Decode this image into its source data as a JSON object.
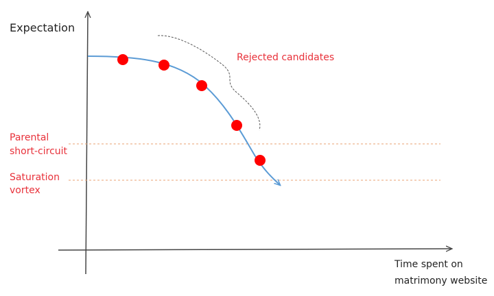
{
  "axes": {
    "y_label": "Expectation",
    "x_label": [
      "Time spent on",
      "matrimony website"
    ]
  },
  "annotation": "Rejected candidates",
  "thresholds": [
    {
      "label": [
        "Parental",
        "short-circuit"
      ]
    },
    {
      "label": [
        "Saturation",
        "vortex"
      ]
    }
  ]
}
